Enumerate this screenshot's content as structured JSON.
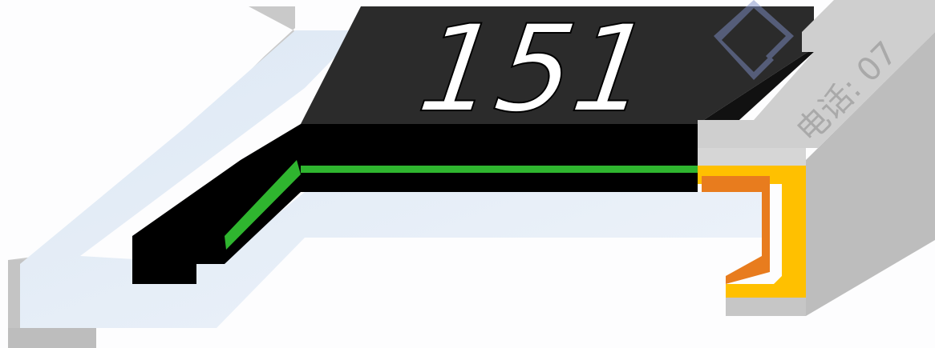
{
  "marking": "151",
  "watermark": "电话: 07"
}
